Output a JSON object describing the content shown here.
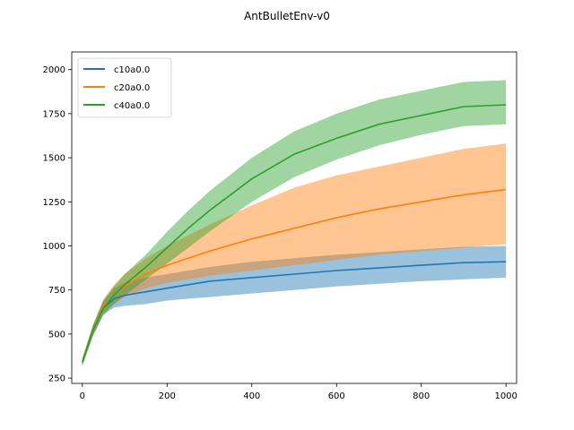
{
  "chart_data": {
    "type": "line",
    "title": "AntBulletEnv-v0",
    "xlabel": "",
    "ylabel": "",
    "xlim": [
      -25,
      1025
    ],
    "ylim": [
      220,
      2100
    ],
    "xticks": [
      0,
      200,
      400,
      600,
      800,
      1000
    ],
    "yticks": [
      250,
      500,
      750,
      1000,
      1250,
      1500,
      1750,
      2000
    ],
    "grid": false,
    "legend_position": "top-left",
    "series": [
      {
        "name": "c10a0.0",
        "color": "#1f77b4",
        "x": [
          0,
          25,
          50,
          75,
          100,
          150,
          200,
          250,
          300,
          400,
          500,
          600,
          700,
          800,
          900,
          1000
        ],
        "mean": [
          340,
          520,
          650,
          700,
          720,
          740,
          760,
          780,
          800,
          820,
          840,
          860,
          875,
          890,
          905,
          910
        ],
        "lower": [
          320,
          490,
          610,
          650,
          660,
          670,
          690,
          700,
          710,
          730,
          750,
          770,
          785,
          800,
          810,
          820
        ],
        "upper": [
          360,
          550,
          690,
          760,
          790,
          820,
          840,
          860,
          880,
          910,
          930,
          950,
          965,
          980,
          995,
          1000
        ]
      },
      {
        "name": "c20a0.0",
        "color": "#ff7f0e",
        "x": [
          0,
          25,
          50,
          75,
          100,
          150,
          200,
          250,
          300,
          400,
          500,
          600,
          700,
          800,
          900,
          1000
        ],
        "mean": [
          340,
          520,
          660,
          720,
          770,
          840,
          890,
          930,
          970,
          1040,
          1100,
          1160,
          1210,
          1250,
          1290,
          1320
        ],
        "lower": [
          320,
          490,
          620,
          670,
          710,
          760,
          790,
          810,
          830,
          860,
          890,
          920,
          950,
          970,
          990,
          1010
        ],
        "upper": [
          360,
          550,
          700,
          780,
          840,
          930,
          1000,
          1060,
          1120,
          1230,
          1330,
          1400,
          1450,
          1500,
          1550,
          1580
        ]
      },
      {
        "name": "c40a0.0",
        "color": "#2ca02c",
        "x": [
          0,
          25,
          50,
          75,
          100,
          150,
          200,
          250,
          300,
          400,
          500,
          600,
          700,
          800,
          900,
          1000
        ],
        "mean": [
          340,
          520,
          650,
          720,
          780,
          880,
          990,
          1100,
          1200,
          1380,
          1520,
          1610,
          1690,
          1740,
          1790,
          1800
        ],
        "lower": [
          320,
          490,
          610,
          670,
          720,
          810,
          900,
          990,
          1080,
          1250,
          1390,
          1490,
          1570,
          1630,
          1680,
          1690
        ],
        "upper": [
          360,
          550,
          690,
          770,
          840,
          950,
          1080,
          1200,
          1310,
          1500,
          1650,
          1750,
          1830,
          1880,
          1930,
          1940
        ]
      }
    ]
  }
}
